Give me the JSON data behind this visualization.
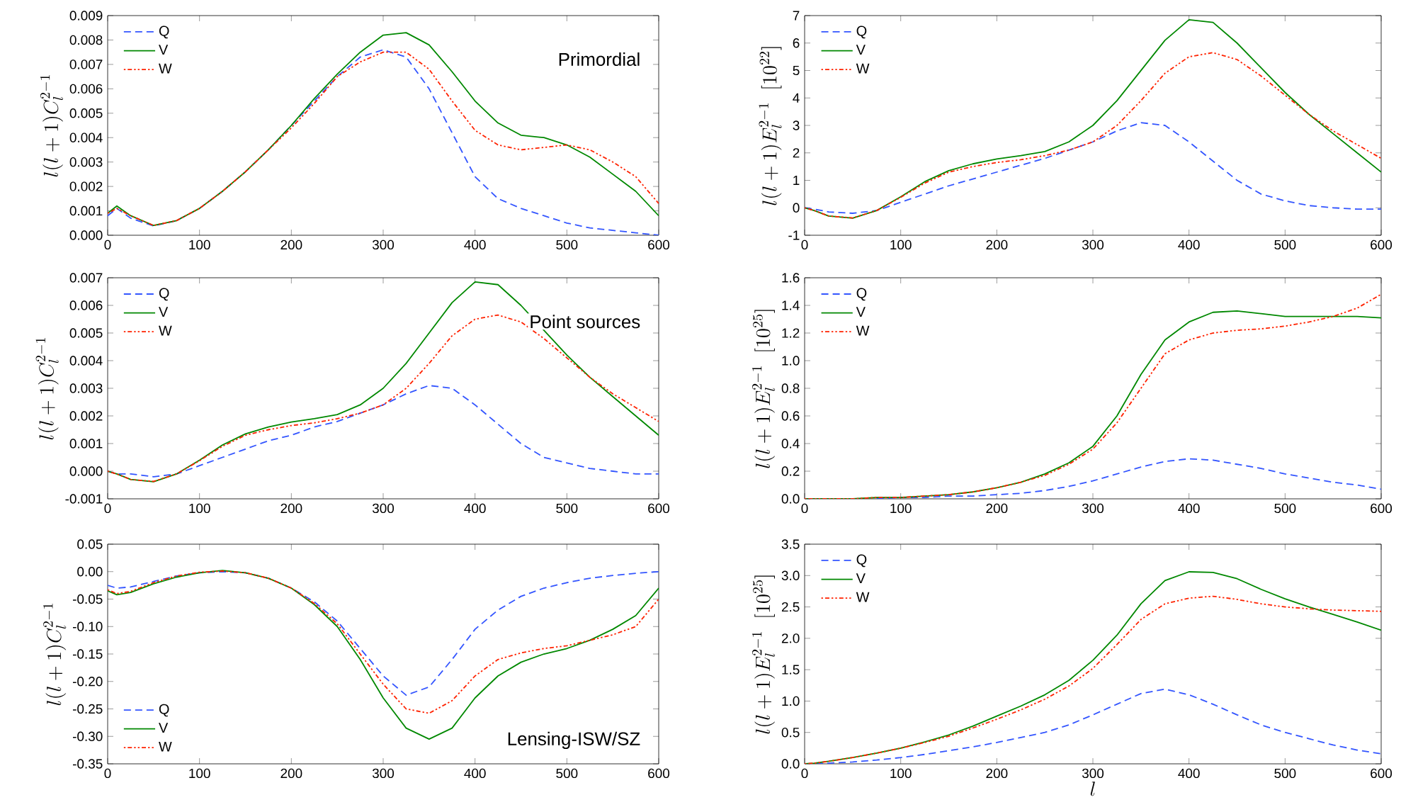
{
  "chart_data": [
    {
      "type": "line",
      "ylabel": "l(l+1)C_l^{2-1}",
      "annotations": [
        "Primordial"
      ],
      "legend": "top left",
      "xlim": [
        0,
        600
      ],
      "ylim": [
        0,
        0.009
      ],
      "xticks": [
        0,
        100,
        200,
        300,
        400,
        500,
        600
      ],
      "yticks": [
        {
          "value": 0,
          "label": "0.000"
        },
        0.001,
        0.002,
        0.003,
        0.004,
        0.005,
        0.006,
        0.007,
        0.008,
        0.009
      ],
      "x": [
        0,
        10,
        25,
        50,
        75,
        100,
        125,
        150,
        175,
        200,
        225,
        250,
        275,
        300,
        325,
        350,
        375,
        400,
        425,
        450,
        475,
        500,
        525,
        550,
        575,
        600
      ],
      "series": [
        {
          "name": "Q",
          "color": "#3355ff",
          "line_style": "dashed",
          "values": [
            0.0008,
            0.0011,
            0.0007,
            0.00038,
            0.0006,
            0.0011,
            0.0018,
            0.0026,
            0.0035,
            0.0045,
            0.0055,
            0.0065,
            0.0073,
            0.0076,
            0.0073,
            0.006,
            0.0042,
            0.0024,
            0.0015,
            0.0011,
            0.0008,
            0.0005,
            0.0003,
            0.0002,
            0.0001,
            0.0
          ]
        },
        {
          "name": "V",
          "color": "#008800",
          "line_style": "solid",
          "values": [
            0.0009,
            0.0012,
            0.0008,
            0.0004,
            0.0006,
            0.0011,
            0.0018,
            0.0026,
            0.0035,
            0.0045,
            0.0056,
            0.0066,
            0.0075,
            0.0082,
            0.0083,
            0.0078,
            0.0067,
            0.0055,
            0.0046,
            0.0041,
            0.004,
            0.0037,
            0.0032,
            0.0025,
            0.0018,
            0.0008
          ]
        },
        {
          "name": "W",
          "color": "#ff2200",
          "line_style": "dotted",
          "values": [
            0.0009,
            0.0011,
            0.0008,
            0.0004,
            0.0006,
            0.0011,
            0.0018,
            0.0026,
            0.0035,
            0.0044,
            0.0054,
            0.0065,
            0.0071,
            0.0075,
            0.0075,
            0.0068,
            0.0055,
            0.0043,
            0.0037,
            0.0035,
            0.0036,
            0.0037,
            0.0035,
            0.003,
            0.0024,
            0.0013
          ]
        }
      ]
    },
    {
      "type": "line",
      "ylabel": "l(l+1)E_l^{2-1}\\ \\ [10^{22}]",
      "legend": "top left",
      "xlim": [
        0,
        600
      ],
      "ylim": [
        -1,
        7
      ],
      "xticks": [
        0,
        100,
        200,
        300,
        400,
        500,
        600
      ],
      "yticks": [
        -1,
        0,
        1,
        2,
        3,
        4,
        5,
        6,
        7
      ],
      "x": [
        0,
        10,
        25,
        50,
        75,
        100,
        125,
        150,
        175,
        200,
        225,
        250,
        275,
        300,
        325,
        350,
        375,
        400,
        425,
        450,
        475,
        500,
        525,
        550,
        575,
        600
      ],
      "series": [
        {
          "name": "Q",
          "color": "#3355ff",
          "line_style": "dashed",
          "values": [
            0,
            -0.05,
            -0.15,
            -0.2,
            -0.1,
            0.2,
            0.5,
            0.8,
            1.05,
            1.3,
            1.55,
            1.8,
            2.1,
            2.4,
            2.8,
            3.1,
            3.0,
            2.4,
            1.7,
            1.0,
            0.5,
            0.25,
            0.08,
            0.0,
            -0.05,
            -0.05
          ]
        },
        {
          "name": "V",
          "color": "#008800",
          "line_style": "solid",
          "values": [
            0,
            -0.1,
            -0.3,
            -0.38,
            -0.1,
            0.4,
            0.95,
            1.35,
            1.6,
            1.78,
            1.9,
            2.05,
            2.4,
            3.0,
            3.9,
            5.0,
            6.1,
            6.85,
            6.75,
            6.0,
            5.1,
            4.2,
            3.4,
            2.7,
            2.0,
            1.3
          ]
        },
        {
          "name": "W",
          "color": "#ff2200",
          "line_style": "dotted",
          "values": [
            0,
            -0.1,
            -0.3,
            -0.37,
            -0.1,
            0.38,
            0.9,
            1.3,
            1.5,
            1.65,
            1.75,
            1.9,
            2.1,
            2.4,
            3.0,
            3.9,
            4.9,
            5.5,
            5.65,
            5.4,
            4.8,
            4.1,
            3.4,
            2.8,
            2.3,
            1.8
          ]
        }
      ]
    },
    {
      "type": "line",
      "ylabel": "l(l+1)C_l^{2-1}",
      "annotations": [
        "Point sources"
      ],
      "legend": "top left",
      "xlim": [
        0,
        600
      ],
      "ylim": [
        -0.001,
        0.007
      ],
      "xticks": [
        0,
        100,
        200,
        300,
        400,
        500,
        600
      ],
      "yticks": [
        -0.001,
        {
          "value": 0,
          "label": "0.000"
        },
        0.001,
        0.002,
        0.003,
        0.004,
        0.005,
        0.006,
        0.007
      ],
      "x": [
        0,
        10,
        25,
        50,
        75,
        100,
        125,
        150,
        175,
        200,
        225,
        250,
        275,
        300,
        325,
        350,
        375,
        400,
        425,
        450,
        475,
        500,
        525,
        550,
        575,
        600
      ],
      "series": [
        {
          "name": "Q",
          "color": "#3355ff",
          "line_style": "dashed",
          "values": [
            0,
            -0.0001,
            -0.0001,
            -0.0002,
            -0.0001,
            0.0002,
            0.0005,
            0.0008,
            0.0011,
            0.0013,
            0.0016,
            0.0018,
            0.0021,
            0.0024,
            0.0028,
            0.0031,
            0.003,
            0.0024,
            0.0017,
            0.001,
            0.0005,
            0.0003,
            0.0001,
            0,
            -0.0001,
            -0.0001
          ]
        },
        {
          "name": "V",
          "color": "#008800",
          "line_style": "solid",
          "values": [
            0,
            -0.0001,
            -0.0003,
            -0.00038,
            -0.0001,
            0.0004,
            0.00095,
            0.00135,
            0.0016,
            0.00178,
            0.0019,
            0.00205,
            0.0024,
            0.003,
            0.0039,
            0.005,
            0.0061,
            0.00685,
            0.00675,
            0.006,
            0.0051,
            0.0042,
            0.0034,
            0.0027,
            0.002,
            0.0013
          ]
        },
        {
          "name": "W",
          "color": "#ff2200",
          "line_style": "dotted",
          "values": [
            0,
            -0.0001,
            -0.0003,
            -0.00037,
            -0.0001,
            0.00038,
            0.0009,
            0.0013,
            0.0015,
            0.00165,
            0.00175,
            0.0019,
            0.0021,
            0.0024,
            0.003,
            0.0039,
            0.0049,
            0.0055,
            0.00565,
            0.0054,
            0.0048,
            0.0041,
            0.0034,
            0.0028,
            0.0023,
            0.0018
          ]
        }
      ]
    },
    {
      "type": "line",
      "ylabel": "l(l+1)E_l^{2-1}\\ \\ [10^{25}]",
      "legend": "top left",
      "xlim": [
        0,
        600
      ],
      "ylim": [
        0,
        1.6
      ],
      "xticks": [
        0,
        100,
        200,
        300,
        400,
        500,
        600
      ],
      "yticks": [
        {
          "value": 0,
          "label": "0.0"
        },
        0.2,
        0.4,
        0.6,
        0.8,
        {
          "value": 1,
          "label": "1.0"
        },
        1.2,
        1.4,
        1.6
      ],
      "x": [
        0,
        10,
        25,
        50,
        75,
        100,
        125,
        150,
        175,
        200,
        225,
        250,
        275,
        300,
        325,
        350,
        375,
        400,
        425,
        450,
        475,
        500,
        525,
        550,
        575,
        600
      ],
      "series": [
        {
          "name": "Q",
          "color": "#3355ff",
          "line_style": "dashed",
          "values": [
            null,
            null,
            null,
            null,
            0,
            0.01,
            0.01,
            0.02,
            0.02,
            0.03,
            0.04,
            0.06,
            0.09,
            0.13,
            0.18,
            0.23,
            0.27,
            0.29,
            0.28,
            0.25,
            0.22,
            0.18,
            0.15,
            0.12,
            0.1,
            0.07
          ]
        },
        {
          "name": "V",
          "color": "#008800",
          "line_style": "solid",
          "values": [
            0,
            0,
            0,
            0,
            0.01,
            0.01,
            0.02,
            0.03,
            0.05,
            0.08,
            0.12,
            0.18,
            0.26,
            0.38,
            0.6,
            0.9,
            1.15,
            1.28,
            1.35,
            1.36,
            1.34,
            1.32,
            1.32,
            1.32,
            1.32,
            1.31
          ]
        },
        {
          "name": "W",
          "color": "#ff2200",
          "line_style": "dotted",
          "values": [
            0,
            0,
            0,
            0,
            0.01,
            0.01,
            0.02,
            0.03,
            0.05,
            0.08,
            0.12,
            0.17,
            0.25,
            0.36,
            0.55,
            0.8,
            1.05,
            1.15,
            1.2,
            1.22,
            1.23,
            1.25,
            1.28,
            1.32,
            1.38,
            1.48
          ]
        }
      ]
    },
    {
      "type": "line",
      "ylabel": "l(l+1)C_l^{2-1}",
      "annotations": [
        "Lensing-ISW/SZ"
      ],
      "legend": "bottom left",
      "xlim": [
        0,
        600
      ],
      "ylim": [
        -0.35,
        0.05
      ],
      "xticks": [
        0,
        100,
        200,
        300,
        400,
        500,
        600
      ],
      "yticks": [
        -0.35,
        {
          "value": -0.3,
          "label": "-0.30"
        },
        -0.25,
        {
          "value": -0.2,
          "label": "-0.20"
        },
        -0.15,
        {
          "value": -0.1,
          "label": "-0.10"
        },
        -0.05,
        {
          "value": 0,
          "label": "0.00"
        },
        0.05
      ],
      "x": [
        0,
        10,
        25,
        50,
        75,
        100,
        125,
        150,
        175,
        200,
        225,
        250,
        275,
        300,
        325,
        350,
        375,
        400,
        425,
        450,
        475,
        500,
        525,
        550,
        575,
        600
      ],
      "series": [
        {
          "name": "Q",
          "color": "#3355ff",
          "line_style": "dashed",
          "values": [
            -0.025,
            -0.03,
            -0.028,
            -0.018,
            -0.008,
            -0.002,
            0.0,
            -0.002,
            -0.012,
            -0.03,
            -0.055,
            -0.09,
            -0.14,
            -0.19,
            -0.225,
            -0.21,
            -0.16,
            -0.105,
            -0.07,
            -0.045,
            -0.03,
            -0.02,
            -0.012,
            -0.007,
            -0.003,
            0.0
          ]
        },
        {
          "name": "V",
          "color": "#008800",
          "line_style": "solid",
          "values": [
            -0.035,
            -0.042,
            -0.038,
            -0.022,
            -0.01,
            -0.002,
            0.002,
            -0.002,
            -0.012,
            -0.03,
            -0.06,
            -0.1,
            -0.16,
            -0.23,
            -0.285,
            -0.305,
            -0.285,
            -0.23,
            -0.19,
            -0.165,
            -0.15,
            -0.14,
            -0.125,
            -0.105,
            -0.08,
            -0.03
          ]
        },
        {
          "name": "W",
          "color": "#ff2200",
          "line_style": "dotted",
          "values": [
            -0.033,
            -0.04,
            -0.036,
            -0.02,
            -0.008,
            -0.001,
            0.001,
            -0.002,
            -0.012,
            -0.03,
            -0.058,
            -0.095,
            -0.15,
            -0.205,
            -0.25,
            -0.258,
            -0.235,
            -0.19,
            -0.16,
            -0.148,
            -0.14,
            -0.135,
            -0.125,
            -0.115,
            -0.1,
            -0.05
          ]
        }
      ]
    },
    {
      "type": "line",
      "ylabel": "l(l+1)E_l^{2-1}\\ \\ [10^{25}]",
      "xlabel": "l",
      "legend": "top left",
      "xlim": [
        0,
        600
      ],
      "ylim": [
        0,
        3.5
      ],
      "xticks": [
        0,
        100,
        200,
        300,
        400,
        500,
        600
      ],
      "yticks": [
        {
          "value": 0,
          "label": "0.0"
        },
        0.5,
        {
          "value": 1,
          "label": "1.0"
        },
        1.5,
        {
          "value": 2,
          "label": "2.0"
        },
        2.5,
        {
          "value": 3,
          "label": "3.0"
        },
        3.5
      ],
      "x": [
        0,
        10,
        25,
        50,
        75,
        100,
        125,
        150,
        175,
        200,
        225,
        250,
        275,
        300,
        325,
        350,
        375,
        400,
        425,
        450,
        475,
        500,
        525,
        550,
        575,
        600
      ],
      "series": [
        {
          "name": "Q",
          "color": "#3355ff",
          "line_style": "dashed",
          "values": [
            0,
            0,
            0.01,
            0.03,
            0.06,
            0.1,
            0.15,
            0.21,
            0.27,
            0.34,
            0.42,
            0.5,
            0.62,
            0.78,
            0.95,
            1.12,
            1.19,
            1.1,
            0.95,
            0.78,
            0.62,
            0.5,
            0.4,
            0.3,
            0.22,
            0.16
          ]
        },
        {
          "name": "V",
          "color": "#008800",
          "line_style": "solid",
          "values": [
            0,
            0.01,
            0.04,
            0.1,
            0.17,
            0.25,
            0.35,
            0.46,
            0.6,
            0.76,
            0.92,
            1.1,
            1.33,
            1.65,
            2.05,
            2.55,
            2.92,
            3.06,
            3.05,
            2.95,
            2.78,
            2.63,
            2.5,
            2.38,
            2.26,
            2.13
          ]
        },
        {
          "name": "W",
          "color": "#ff2200",
          "line_style": "dotted",
          "values": [
            0,
            0.01,
            0.04,
            0.1,
            0.17,
            0.25,
            0.34,
            0.44,
            0.57,
            0.71,
            0.86,
            1.03,
            1.24,
            1.52,
            1.9,
            2.3,
            2.55,
            2.64,
            2.67,
            2.62,
            2.55,
            2.5,
            2.47,
            2.45,
            2.44,
            2.43
          ]
        }
      ]
    }
  ]
}
